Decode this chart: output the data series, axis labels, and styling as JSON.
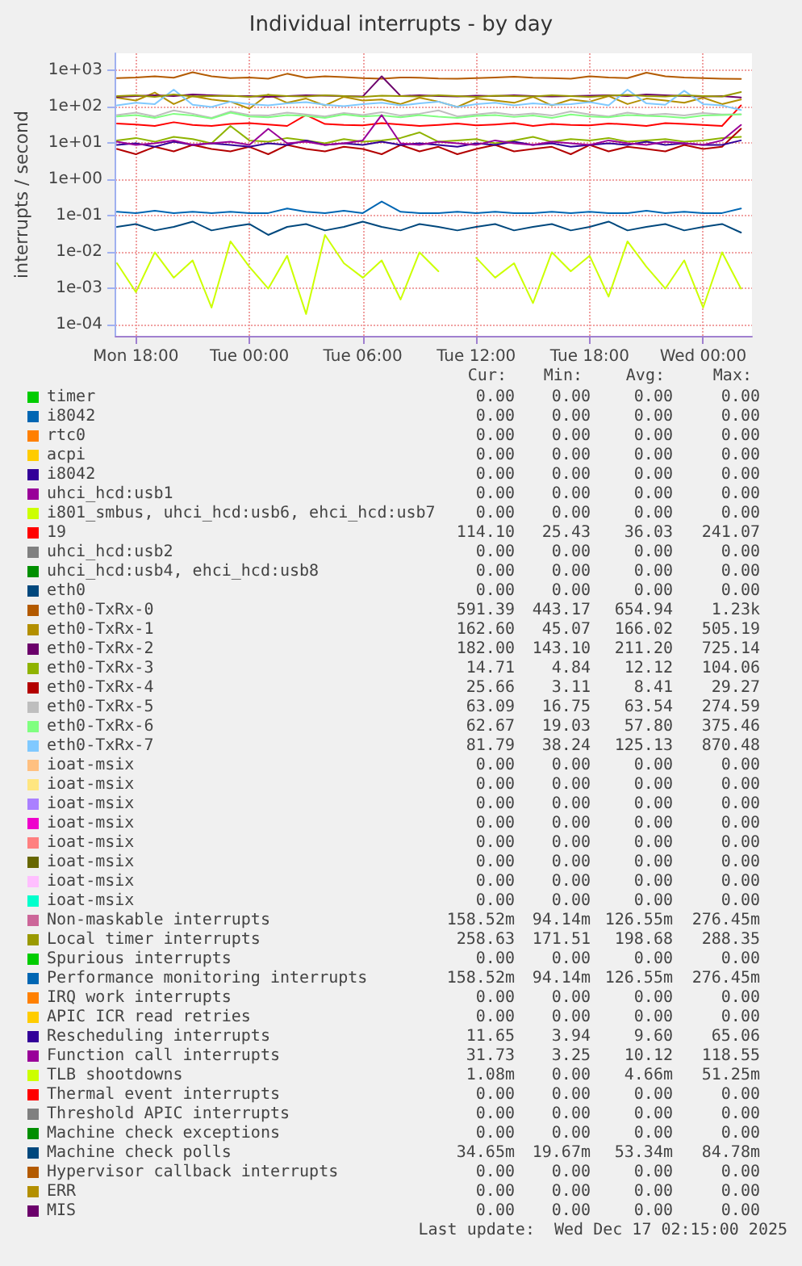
{
  "chart_data": {
    "type": "line",
    "title": "Individual interrupts - by day",
    "ylabel": "interrupts / second",
    "log": "y",
    "grid": true,
    "legend": "bottom",
    "marker": "none",
    "line_style": "solid",
    "x": [
      "2025-12-15T17:00",
      "2025-12-15T18:00",
      "2025-12-15T19:00",
      "2025-12-15T20:00",
      "2025-12-15T21:00",
      "2025-12-15T22:00",
      "2025-12-15T23:00",
      "2025-12-16T00:00",
      "2025-12-16T01:00",
      "2025-12-16T02:00",
      "2025-12-16T03:00",
      "2025-12-16T04:00",
      "2025-12-16T05:00",
      "2025-12-16T06:00",
      "2025-12-16T07:00",
      "2025-12-16T08:00",
      "2025-12-16T09:00",
      "2025-12-16T10:00",
      "2025-12-16T11:00",
      "2025-12-16T12:00",
      "2025-12-16T13:00",
      "2025-12-16T14:00",
      "2025-12-16T15:00",
      "2025-12-16T16:00",
      "2025-12-16T17:00",
      "2025-12-16T18:00",
      "2025-12-16T19:00",
      "2025-12-16T20:00",
      "2025-12-16T21:00",
      "2025-12-16T22:00",
      "2025-12-16T23:00",
      "2025-12-17T00:00",
      "2025-12-17T01:00",
      "2025-12-17T02:00"
    ],
    "xlim": [
      "2025-12-15T16:55",
      "2025-12-17T02:35"
    ],
    "xticks": [
      {
        "value": "2025-12-15T18:00",
        "label": "Mon 18:00"
      },
      {
        "value": "2025-12-16T00:00",
        "label": "Tue 00:00"
      },
      {
        "value": "2025-12-16T06:00",
        "label": "Tue 06:00"
      },
      {
        "value": "2025-12-16T12:00",
        "label": "Tue 12:00"
      },
      {
        "value": "2025-12-16T18:00",
        "label": "Tue 18:00"
      },
      {
        "value": "2025-12-17T00:00",
        "label": "Wed 00:00"
      }
    ],
    "ylim": [
      5e-05,
      3000
    ],
    "yticks": [
      {
        "value": 0.0001,
        "label": "1e-04"
      },
      {
        "value": 0.001,
        "label": "1e-03"
      },
      {
        "value": 0.01,
        "label": "1e-02"
      },
      {
        "value": 0.1,
        "label": "1e-01"
      },
      {
        "value": 1,
        "label": "1e+00"
      },
      {
        "value": 10,
        "label": "1e+01"
      },
      {
        "value": 100,
        "label": "1e+02"
      },
      {
        "value": 1000,
        "label": "1e+03"
      }
    ],
    "series": [
      {
        "name": "timer",
        "color": "#00cc00",
        "values": [
          null,
          null,
          null,
          null,
          null,
          null,
          null,
          null,
          null,
          null,
          null,
          null,
          null,
          null,
          null,
          null,
          null,
          null,
          null,
          null,
          null,
          null,
          null,
          null,
          null,
          null,
          null,
          null,
          null,
          null,
          null,
          null,
          null,
          null
        ]
      },
      {
        "name": "i8042",
        "color": "#0066b3",
        "values": [
          null,
          null,
          null,
          null,
          null,
          null,
          null,
          null,
          null,
          null,
          null,
          null,
          null,
          null,
          null,
          null,
          null,
          null,
          null,
          null,
          null,
          null,
          null,
          null,
          null,
          null,
          null,
          null,
          null,
          null,
          null,
          null,
          null,
          null
        ]
      },
      {
        "name": "rtc0",
        "color": "#ff8000",
        "values": [
          null,
          null,
          null,
          null,
          null,
          null,
          null,
          null,
          null,
          null,
          null,
          null,
          null,
          null,
          null,
          null,
          null,
          null,
          null,
          null,
          null,
          null,
          null,
          null,
          null,
          null,
          null,
          null,
          null,
          null,
          null,
          null,
          null,
          null
        ]
      },
      {
        "name": "acpi",
        "color": "#ffcc00",
        "values": [
          null,
          null,
          null,
          null,
          null,
          null,
          null,
          null,
          null,
          null,
          null,
          null,
          null,
          null,
          null,
          null,
          null,
          null,
          null,
          null,
          null,
          null,
          null,
          null,
          null,
          null,
          null,
          null,
          null,
          null,
          null,
          null,
          null,
          null
        ]
      },
      {
        "name": "i8042",
        "color": "#330099",
        "values": [
          null,
          null,
          null,
          null,
          null,
          null,
          null,
          null,
          null,
          null,
          null,
          null,
          null,
          null,
          null,
          null,
          null,
          null,
          null,
          null,
          null,
          null,
          null,
          null,
          null,
          null,
          null,
          null,
          null,
          null,
          null,
          null,
          null,
          null
        ]
      },
      {
        "name": "uhci_hcd:usb1",
        "color": "#990099",
        "values": [
          null,
          null,
          null,
          null,
          null,
          null,
          null,
          null,
          null,
          null,
          null,
          null,
          null,
          null,
          null,
          null,
          null,
          null,
          null,
          null,
          null,
          null,
          null,
          null,
          null,
          null,
          null,
          null,
          null,
          null,
          null,
          null,
          null,
          null
        ]
      },
      {
        "name": "i801_smbus, uhci_hcd:usb6, ehci_hcd:usb7",
        "color": "#ccff00",
        "values": [
          null,
          null,
          null,
          null,
          null,
          null,
          null,
          null,
          null,
          null,
          null,
          null,
          null,
          null,
          null,
          null,
          null,
          null,
          null,
          null,
          null,
          null,
          null,
          null,
          null,
          null,
          null,
          null,
          null,
          null,
          null,
          null,
          null,
          null
        ]
      },
      {
        "name": "19",
        "color": "#ff0000",
        "values": [
          35,
          33,
          30,
          38,
          32,
          30,
          34,
          36,
          33,
          30,
          60,
          34,
          32,
          31,
          36,
          33,
          30,
          32,
          35,
          31,
          33,
          36,
          30,
          34,
          32,
          31,
          35,
          33,
          30,
          36,
          34,
          32,
          30,
          110
        ]
      },
      {
        "name": "uhci_hcd:usb2",
        "color": "#808080",
        "values": [
          null,
          null,
          null,
          null,
          null,
          null,
          null,
          null,
          null,
          null,
          null,
          null,
          null,
          null,
          null,
          null,
          null,
          null,
          null,
          null,
          null,
          null,
          null,
          null,
          null,
          null,
          null,
          null,
          null,
          null,
          null,
          null,
          null,
          null
        ]
      },
      {
        "name": "uhci_hcd:usb4, ehci_hcd:usb8",
        "color": "#008f00",
        "values": [
          null,
          null,
          null,
          null,
          null,
          null,
          null,
          null,
          null,
          null,
          null,
          null,
          null,
          null,
          null,
          null,
          null,
          null,
          null,
          null,
          null,
          null,
          null,
          null,
          null,
          null,
          null,
          null,
          null,
          null,
          null,
          null,
          null,
          null
        ]
      },
      {
        "name": "eth0",
        "color": "#00487d",
        "values": [
          null,
          null,
          null,
          null,
          null,
          null,
          null,
          null,
          null,
          null,
          null,
          null,
          null,
          null,
          null,
          null,
          null,
          null,
          null,
          null,
          null,
          null,
          null,
          null,
          null,
          null,
          null,
          null,
          null,
          null,
          null,
          null,
          null,
          null
        ]
      },
      {
        "name": "eth0-TxRx-0",
        "color": "#b35a00",
        "values": [
          620,
          650,
          700,
          640,
          900,
          700,
          620,
          650,
          600,
          820,
          640,
          700,
          660,
          620,
          600,
          650,
          640,
          610,
          600,
          620,
          650,
          680,
          640,
          620,
          600,
          700,
          650,
          620,
          880,
          700,
          650,
          620,
          600,
          590
        ]
      },
      {
        "name": "eth0-TxRx-1",
        "color": "#b38f00",
        "values": [
          180,
          150,
          250,
          120,
          200,
          160,
          140,
          90,
          220,
          130,
          170,
          110,
          190,
          150,
          160,
          120,
          180,
          140,
          100,
          170,
          150,
          130,
          190,
          110,
          160,
          140,
          200,
          120,
          170,
          150,
          130,
          180,
          120,
          160
        ]
      },
      {
        "name": "eth0-TxRx-2",
        "color": "#6b006b",
        "values": [
          190,
          200,
          210,
          200,
          220,
          210,
          200,
          200,
          190,
          200,
          210,
          205,
          200,
          195,
          700,
          200,
          210,
          200,
          195,
          205,
          200,
          210,
          200,
          195,
          200,
          205,
          210,
          200,
          220,
          210,
          200,
          195,
          200,
          182
        ]
      },
      {
        "name": "eth0-TxRx-3",
        "color": "#8fb300",
        "values": [
          12,
          14,
          11,
          15,
          13,
          10,
          30,
          12,
          11,
          14,
          12,
          10,
          13,
          11,
          12,
          14,
          20,
          11,
          12,
          13,
          10,
          12,
          15,
          11,
          13,
          12,
          14,
          11,
          12,
          13,
          11,
          12,
          14,
          15
        ]
      },
      {
        "name": "eth0-TxRx-4",
        "color": "#b30000",
        "values": [
          7,
          5,
          8,
          6,
          9,
          7,
          6,
          8,
          5,
          9,
          7,
          6,
          8,
          7,
          5,
          9,
          6,
          8,
          5,
          7,
          9,
          6,
          7,
          8,
          5,
          9,
          6,
          8,
          7,
          6,
          9,
          7,
          8,
          25
        ]
      },
      {
        "name": "eth0-TxRx-5",
        "color": "#bebebe",
        "values": [
          60,
          70,
          55,
          80,
          65,
          50,
          75,
          60,
          58,
          70,
          62,
          55,
          68,
          60,
          72,
          58,
          65,
          80,
          55,
          62,
          70,
          60,
          66,
          58,
          75,
          62,
          55,
          70,
          60,
          65,
          58,
          68,
          62,
          63
        ]
      },
      {
        "name": "eth0-TxRx-6",
        "color": "#80ff80",
        "values": [
          55,
          60,
          50,
          65,
          58,
          48,
          70,
          55,
          52,
          60,
          57,
          50,
          62,
          55,
          58,
          52,
          60,
          54,
          50,
          57,
          60,
          53,
          58,
          50,
          62,
          55,
          52,
          60,
          57,
          55,
          50,
          58,
          60,
          62
        ]
      },
      {
        "name": "eth0-TxRx-7",
        "color": "#80c9ff",
        "values": [
          110,
          130,
          120,
          300,
          115,
          100,
          140,
          120,
          110,
          125,
          135,
          115,
          105,
          120,
          130,
          110,
          125,
          140,
          100,
          120,
          130,
          110,
          125,
          115,
          120,
          135,
          110,
          300,
          125,
          115,
          280,
          120,
          110,
          82
        ]
      },
      {
        "name": "ioat-msix",
        "color": "#ffc080",
        "values": [
          null,
          null,
          null,
          null,
          null,
          null,
          null,
          null,
          null,
          null,
          null,
          null,
          null,
          null,
          null,
          null,
          null,
          null,
          null,
          null,
          null,
          null,
          null,
          null,
          null,
          null,
          null,
          null,
          null,
          null,
          null,
          null,
          null,
          null
        ]
      },
      {
        "name": "ioat-msix",
        "color": "#ffe680",
        "values": [
          null,
          null,
          null,
          null,
          null,
          null,
          null,
          null,
          null,
          null,
          null,
          null,
          null,
          null,
          null,
          null,
          null,
          null,
          null,
          null,
          null,
          null,
          null,
          null,
          null,
          null,
          null,
          null,
          null,
          null,
          null,
          null,
          null,
          null
        ]
      },
      {
        "name": "ioat-msix",
        "color": "#aa80ff",
        "values": [
          null,
          null,
          null,
          null,
          null,
          null,
          null,
          null,
          null,
          null,
          null,
          null,
          null,
          null,
          null,
          null,
          null,
          null,
          null,
          null,
          null,
          null,
          null,
          null,
          null,
          null,
          null,
          null,
          null,
          null,
          null,
          null,
          null,
          null
        ]
      },
      {
        "name": "ioat-msix",
        "color": "#ee00cc",
        "values": [
          null,
          null,
          null,
          null,
          null,
          null,
          null,
          null,
          null,
          null,
          null,
          null,
          null,
          null,
          null,
          null,
          null,
          null,
          null,
          null,
          null,
          null,
          null,
          null,
          null,
          null,
          null,
          null,
          null,
          null,
          null,
          null,
          null,
          null
        ]
      },
      {
        "name": "ioat-msix",
        "color": "#ff8080",
        "values": [
          null,
          null,
          null,
          null,
          null,
          null,
          null,
          null,
          null,
          null,
          null,
          null,
          null,
          null,
          null,
          null,
          null,
          null,
          null,
          null,
          null,
          null,
          null,
          null,
          null,
          null,
          null,
          null,
          null,
          null,
          null,
          null,
          null,
          null
        ]
      },
      {
        "name": "ioat-msix",
        "color": "#666600",
        "values": [
          null,
          null,
          null,
          null,
          null,
          null,
          null,
          null,
          null,
          null,
          null,
          null,
          null,
          null,
          null,
          null,
          null,
          null,
          null,
          null,
          null,
          null,
          null,
          null,
          null,
          null,
          null,
          null,
          null,
          null,
          null,
          null,
          null,
          null
        ]
      },
      {
        "name": "ioat-msix",
        "color": "#ffbfff",
        "values": [
          null,
          null,
          null,
          null,
          null,
          null,
          null,
          null,
          null,
          null,
          null,
          null,
          null,
          null,
          null,
          null,
          null,
          null,
          null,
          null,
          null,
          null,
          null,
          null,
          null,
          null,
          null,
          null,
          null,
          null,
          null,
          null,
          null,
          null
        ]
      },
      {
        "name": "ioat-msix",
        "color": "#00ffcc",
        "values": [
          null,
          null,
          null,
          null,
          null,
          null,
          null,
          null,
          null,
          null,
          null,
          null,
          null,
          null,
          null,
          null,
          null,
          null,
          null,
          null,
          null,
          null,
          null,
          null,
          null,
          null,
          null,
          null,
          null,
          null,
          null,
          null,
          null,
          null
        ]
      },
      {
        "name": "Non-maskable interrupts",
        "color": "#cc6699",
        "values": [
          null,
          null,
          null,
          null,
          null,
          null,
          null,
          null,
          null,
          null,
          null,
          null,
          null,
          null,
          null,
          null,
          null,
          null,
          null,
          null,
          null,
          null,
          null,
          null,
          null,
          null,
          null,
          null,
          null,
          null,
          null,
          null,
          null,
          null
        ]
      },
      {
        "name": "Local timer interrupts",
        "color": "#999900",
        "values": [
          200,
          210,
          190,
          220,
          195,
          200,
          205,
          190,
          215,
          200,
          195,
          210,
          200,
          190,
          205,
          200,
          195,
          210,
          200,
          190,
          205,
          200,
          195,
          210,
          200,
          190,
          205,
          215,
          200,
          195,
          210,
          200,
          195,
          258
        ]
      },
      {
        "name": "Spurious interrupts",
        "color": "#00cc00",
        "values": [
          null,
          null,
          null,
          null,
          null,
          null,
          null,
          null,
          null,
          null,
          null,
          null,
          null,
          null,
          null,
          null,
          null,
          null,
          null,
          null,
          null,
          null,
          null,
          null,
          null,
          null,
          null,
          null,
          null,
          null,
          null,
          null,
          null,
          null
        ]
      },
      {
        "name": "Performance monitoring interrupts",
        "color": "#0066b3",
        "values": [
          0.13,
          0.12,
          0.14,
          0.12,
          0.13,
          0.12,
          0.13,
          0.12,
          0.12,
          0.16,
          0.13,
          0.12,
          0.14,
          0.12,
          0.25,
          0.13,
          0.12,
          0.12,
          0.13,
          0.12,
          0.13,
          0.12,
          0.12,
          0.13,
          0.12,
          0.13,
          0.12,
          0.12,
          0.14,
          0.12,
          0.13,
          0.12,
          0.12,
          0.16
        ]
      },
      {
        "name": "IRQ work interrupts",
        "color": "#ff8000",
        "values": [
          null,
          null,
          null,
          null,
          null,
          null,
          null,
          null,
          null,
          null,
          null,
          null,
          null,
          null,
          null,
          null,
          null,
          null,
          null,
          null,
          null,
          null,
          null,
          null,
          null,
          null,
          null,
          null,
          null,
          null,
          null,
          null,
          null,
          null
        ]
      },
      {
        "name": "APIC ICR read retries",
        "color": "#ffcc00",
        "values": [
          null,
          null,
          null,
          null,
          null,
          null,
          null,
          null,
          null,
          null,
          null,
          null,
          null,
          null,
          null,
          null,
          null,
          null,
          null,
          null,
          null,
          null,
          null,
          null,
          null,
          null,
          null,
          null,
          null,
          null,
          null,
          null,
          null,
          null
        ]
      },
      {
        "name": "Rescheduling interrupts",
        "color": "#330099",
        "values": [
          9,
          10,
          8,
          11,
          9,
          10,
          9,
          8,
          10,
          9,
          12,
          9,
          10,
          9,
          11,
          9,
          10,
          9,
          8,
          10,
          9,
          11,
          9,
          10,
          8,
          9,
          10,
          9,
          11,
          9,
          10,
          9,
          9,
          12
        ]
      },
      {
        "name": "Function call interrupts",
        "color": "#990099",
        "values": [
          11,
          9,
          10,
          12,
          9,
          10,
          11,
          9,
          25,
          10,
          11,
          9,
          10,
          12,
          60,
          10,
          9,
          11,
          10,
          9,
          12,
          10,
          9,
          11,
          10,
          9,
          12,
          10,
          9,
          11,
          10,
          9,
          12,
          32
        ]
      },
      {
        "name": "TLB shootdowns",
        "color": "#ccff00",
        "values": [
          0.005,
          0.0008,
          0.01,
          0.002,
          0.006,
          0.0003,
          0.02,
          0.004,
          0.001,
          0.008,
          0.0002,
          0.03,
          0.005,
          0.002,
          0.006,
          0.0005,
          0.01,
          0.003,
          null,
          0.007,
          0.002,
          0.005,
          0.0004,
          0.01,
          0.003,
          0.008,
          0.0006,
          0.02,
          0.004,
          0.001,
          0.006,
          0.0003,
          0.01,
          0.001
        ]
      },
      {
        "name": "Thermal event interrupts",
        "color": "#ff0000",
        "values": [
          null,
          null,
          null,
          null,
          null,
          null,
          null,
          null,
          null,
          null,
          null,
          null,
          null,
          null,
          null,
          null,
          null,
          null,
          null,
          null,
          null,
          null,
          null,
          null,
          null,
          null,
          null,
          null,
          null,
          null,
          null,
          null,
          null,
          null
        ]
      },
      {
        "name": "Threshold APIC interrupts",
        "color": "#808080",
        "values": [
          null,
          null,
          null,
          null,
          null,
          null,
          null,
          null,
          null,
          null,
          null,
          null,
          null,
          null,
          null,
          null,
          null,
          null,
          null,
          null,
          null,
          null,
          null,
          null,
          null,
          null,
          null,
          null,
          null,
          null,
          null,
          null,
          null,
          null
        ]
      },
      {
        "name": "Machine check exceptions",
        "color": "#008f00",
        "values": [
          null,
          null,
          null,
          null,
          null,
          null,
          null,
          null,
          null,
          null,
          null,
          null,
          null,
          null,
          null,
          null,
          null,
          null,
          null,
          null,
          null,
          null,
          null,
          null,
          null,
          null,
          null,
          null,
          null,
          null,
          null,
          null,
          null,
          null
        ]
      },
      {
        "name": "Machine check polls",
        "color": "#00487d",
        "values": [
          0.05,
          0.06,
          0.04,
          0.05,
          0.07,
          0.04,
          0.05,
          0.06,
          0.03,
          0.05,
          0.06,
          0.04,
          0.05,
          0.07,
          0.05,
          0.04,
          0.06,
          0.05,
          0.04,
          0.05,
          0.06,
          0.04,
          0.05,
          0.06,
          0.04,
          0.05,
          0.07,
          0.04,
          0.05,
          0.06,
          0.04,
          0.05,
          0.06,
          0.035
        ]
      },
      {
        "name": "Hypervisor callback interrupts",
        "color": "#b35a00",
        "values": [
          null,
          null,
          null,
          null,
          null,
          null,
          null,
          null,
          null,
          null,
          null,
          null,
          null,
          null,
          null,
          null,
          null,
          null,
          null,
          null,
          null,
          null,
          null,
          null,
          null,
          null,
          null,
          null,
          null,
          null,
          null,
          null,
          null,
          null
        ]
      },
      {
        "name": "ERR",
        "color": "#b38f00",
        "values": [
          null,
          null,
          null,
          null,
          null,
          null,
          null,
          null,
          null,
          null,
          null,
          null,
          null,
          null,
          null,
          null,
          null,
          null,
          null,
          null,
          null,
          null,
          null,
          null,
          null,
          null,
          null,
          null,
          null,
          null,
          null,
          null,
          null,
          null
        ]
      },
      {
        "name": "MIS",
        "color": "#6b006b",
        "values": [
          null,
          null,
          null,
          null,
          null,
          null,
          null,
          null,
          null,
          null,
          null,
          null,
          null,
          null,
          null,
          null,
          null,
          null,
          null,
          null,
          null,
          null,
          null,
          null,
          null,
          null,
          null,
          null,
          null,
          null,
          null,
          null,
          null,
          null
        ]
      }
    ],
    "annotations": [
      "Cur:",
      "Min:",
      "Avg:",
      "Max:",
      "0.00",
      "0.00",
      "0.00",
      "0.00",
      "0.00",
      "0.00",
      "0.00",
      "0.00",
      "0.00",
      "0.00",
      "0.00",
      "0.00",
      "0.00",
      "0.00",
      "0.00",
      "0.00",
      "0.00",
      "0.00",
      "0.00",
      "0.00",
      "0.00",
      "0.00",
      "0.00",
      "0.00",
      "0.00",
      "0.00",
      "0.00",
      "0.00",
      "114.10",
      "25.43",
      "36.03",
      "241.07",
      "0.00",
      "0.00",
      "0.00",
      "0.00",
      "0.00",
      "0.00",
      "0.00",
      "0.00",
      "0.00",
      "0.00",
      "0.00",
      "0.00",
      "591.39",
      "443.17",
      "654.94",
      "1.23k",
      "162.60",
      "45.07",
      "166.02",
      "505.19",
      "182.00",
      "143.10",
      "211.20",
      "725.14",
      "14.71",
      "4.84",
      "12.12",
      "104.06",
      "25.66",
      "3.11",
      "8.41",
      "29.27",
      "63.09",
      "16.75",
      "63.54",
      "274.59",
      "62.67",
      "19.03",
      "57.80",
      "375.46",
      "81.79",
      "38.24",
      "125.13",
      "870.48",
      "0.00",
      "0.00",
      "0.00",
      "0.00",
      "0.00",
      "0.00",
      "0.00",
      "0.00",
      "0.00",
      "0.00",
      "0.00",
      "0.00",
      "0.00",
      "0.00",
      "0.00",
      "0.00",
      "0.00",
      "0.00",
      "0.00",
      "0.00",
      "0.00",
      "0.00",
      "0.00",
      "0.00",
      "0.00",
      "0.00",
      "0.00",
      "0.00",
      "0.00",
      "0.00",
      "0.00",
      "0.00",
      "158.52m",
      "94.14m",
      "126.55m",
      "276.45m",
      "258.63",
      "171.51",
      "198.68",
      "288.35",
      "0.00",
      "0.00",
      "0.00",
      "0.00",
      "158.52m",
      "94.14m",
      "126.55m",
      "276.45m",
      "0.00",
      "0.00",
      "0.00",
      "0.00",
      "0.00",
      "0.00",
      "0.00",
      "0.00",
      "11.65",
      "3.94",
      "9.60",
      "65.06",
      "31.73",
      "3.25",
      "10.12",
      "118.55",
      "1.08m",
      "0.00",
      "4.66m",
      "51.25m",
      "0.00",
      "0.00",
      "0.00",
      "0.00",
      "0.00",
      "0.00",
      "0.00",
      "0.00",
      "0.00",
      "0.00",
      "0.00",
      "0.00",
      "34.65m",
      "19.67m",
      "53.34m",
      "84.78m",
      "0.00",
      "0.00",
      "0.00",
      "0.00",
      "0.00",
      "0.00",
      "0.00",
      "0.00",
      "0.00",
      "0.00",
      "0.00",
      "0.00",
      "Last update:  Wed Dec 17 02:15:00 2025"
    ]
  }
}
